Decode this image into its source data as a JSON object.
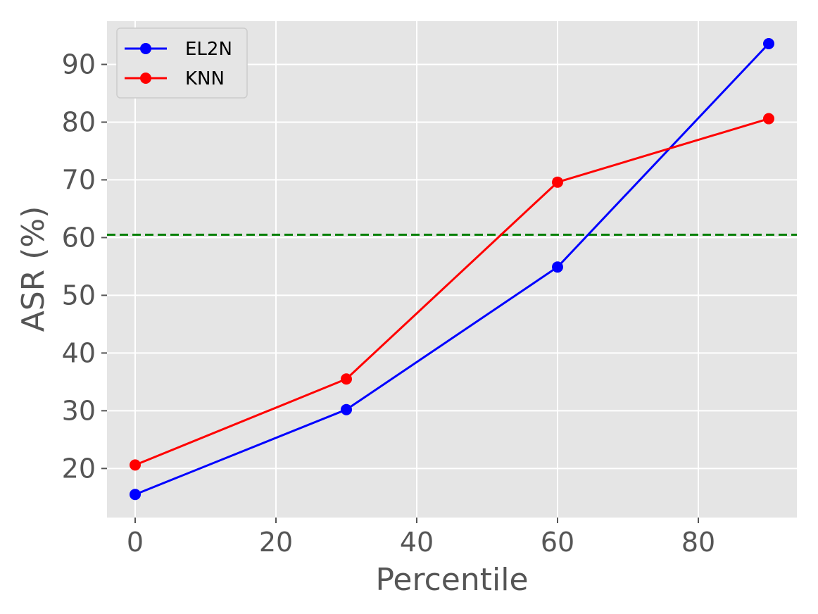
{
  "chart_data": {
    "type": "line",
    "title": "",
    "xlabel": "Percentile",
    "ylabel": "ASR (%)",
    "xlim": [
      -4,
      94
    ],
    "ylim": [
      11.5,
      97.5
    ],
    "x_ticks": [
      0,
      20,
      40,
      60,
      80
    ],
    "y_ticks": [
      20,
      30,
      40,
      50,
      60,
      70,
      80,
      90
    ],
    "grid": true,
    "legend_position": "top-left",
    "x": [
      0,
      30,
      60,
      90
    ],
    "series": [
      {
        "name": "EL2N",
        "color": "#0000ff",
        "values": [
          15.5,
          30.2,
          54.9,
          93.6
        ]
      },
      {
        "name": "KNN",
        "color": "#ff0000",
        "values": [
          20.6,
          35.5,
          69.6,
          80.6
        ]
      }
    ],
    "reference_line": {
      "y": 60.5,
      "color": "#008000",
      "style": "dashed"
    },
    "colors": {
      "plot_background": "#e5e5e5",
      "grid": "#ffffff",
      "text": "#555555"
    }
  }
}
